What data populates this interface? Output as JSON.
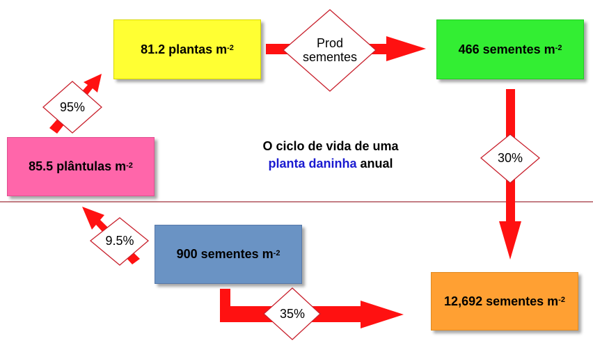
{
  "boxes": {
    "plantas": {
      "value": "81.2 plantas m",
      "sup": "-2",
      "color": "#ffff33"
    },
    "sementes_prod": {
      "value": "466 sementes m",
      "sup": "-2",
      "color": "#33ee33"
    },
    "sementes_total": {
      "value": "12,692 sementes m",
      "sup": "-2",
      "color": "#ffa033"
    },
    "sementes_banco": {
      "value": "900 sementes m",
      "sup": "-2",
      "color": "#6a93c4"
    },
    "plantulas": {
      "value": "85.5 plântulas m",
      "sup": "-2",
      "color": "#ff66aa"
    }
  },
  "diamonds": {
    "prod": {
      "line1": "Prod",
      "line2": "sementes"
    },
    "p30": "30%",
    "p35": "35%",
    "p95": "9.5%",
    "p95b": "95%"
  },
  "title": {
    "line1": "O ciclo de vida de uma",
    "highlight": "planta daninha",
    "rest": "anual",
    "highlight_color": "#1a1ad0"
  },
  "arrow_color": "#ff1111",
  "divider_color": "#a0303a"
}
